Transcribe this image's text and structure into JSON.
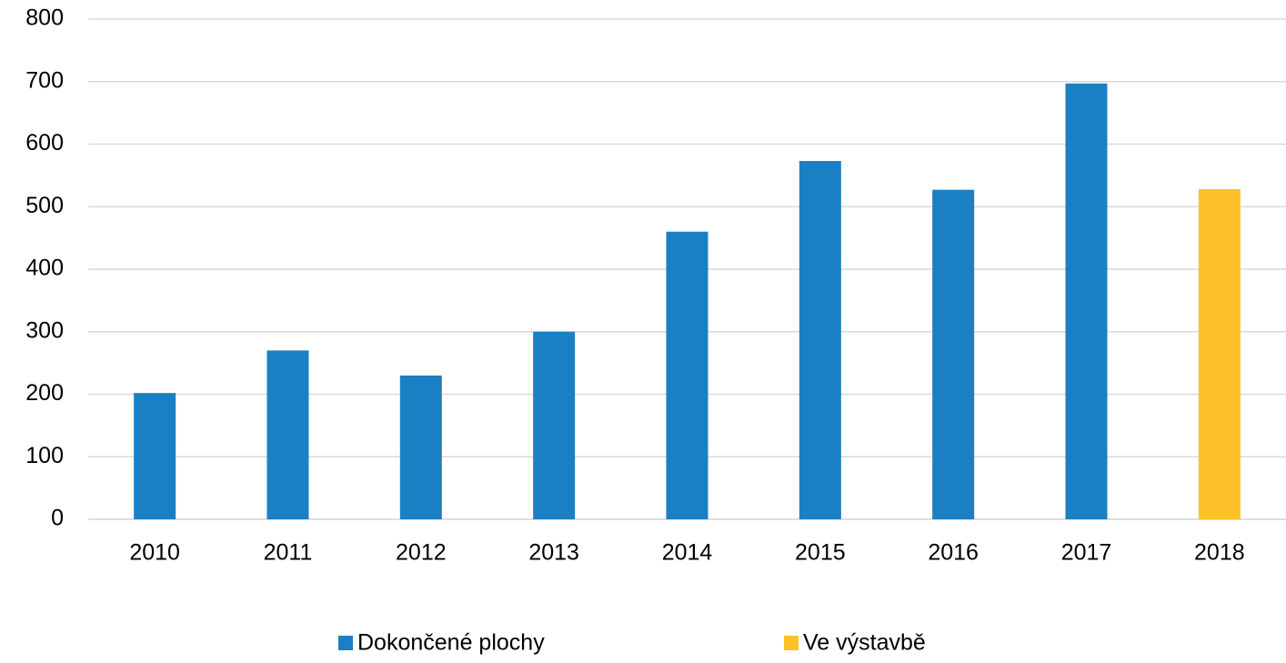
{
  "chart_data": {
    "type": "bar",
    "categories": [
      "2010",
      "2011",
      "2012",
      "2013",
      "2014",
      "2015",
      "2016",
      "2017",
      "2018"
    ],
    "series": [
      {
        "name": "Dokončené plochy",
        "color": "#1b7fc4",
        "values": [
          202,
          270,
          230,
          300,
          460,
          573,
          527,
          697,
          null
        ]
      },
      {
        "name": "Ve výstavbě",
        "color": "#fdc12a",
        "values": [
          null,
          null,
          null,
          null,
          null,
          null,
          null,
          null,
          528
        ]
      }
    ],
    "ylim": [
      0,
      800
    ],
    "yticks": [
      0,
      100,
      200,
      300,
      400,
      500,
      600,
      700,
      800
    ],
    "grid": true,
    "legend": "bottom"
  }
}
